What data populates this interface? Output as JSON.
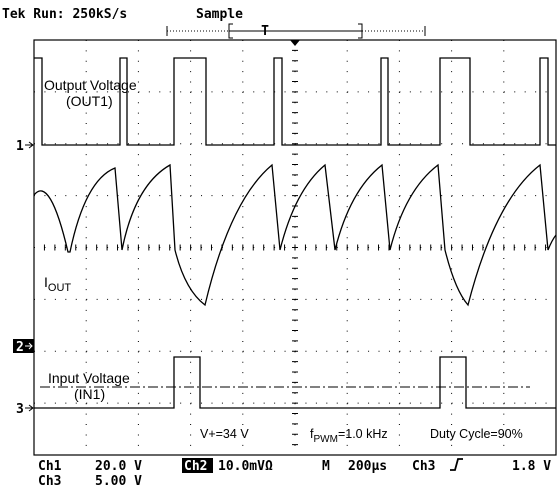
{
  "header": {
    "status": "Tek Run: 250kS/s",
    "mode": "Sample",
    "trigger_marker": "T"
  },
  "traces": [
    {
      "marker": "1",
      "label": "Output Voltage",
      "sublabel": "(OUT1)"
    },
    {
      "marker": "2",
      "label": "I",
      "label_sub": "OUT"
    },
    {
      "marker": "3",
      "label": "Input Voltage",
      "sublabel": "(IN1)"
    }
  ],
  "annotations": {
    "supply": "V+=34 V",
    "freq_symbol": "f",
    "freq_sub": "PWM",
    "freq_value": "=1.0 kHz",
    "duty": "Duty Cycle=90%"
  },
  "readout": {
    "ch1": "Ch1",
    "ch1_scale": "20.0 V",
    "ch2": "Ch2",
    "ch2_scale": "10.0mVΩ",
    "time_label": "M",
    "time_scale": "200µs",
    "trig_source": "Ch3",
    "trig_level": "1.8 V",
    "ch3": "Ch3",
    "ch3_scale": "5.00 V"
  }
}
